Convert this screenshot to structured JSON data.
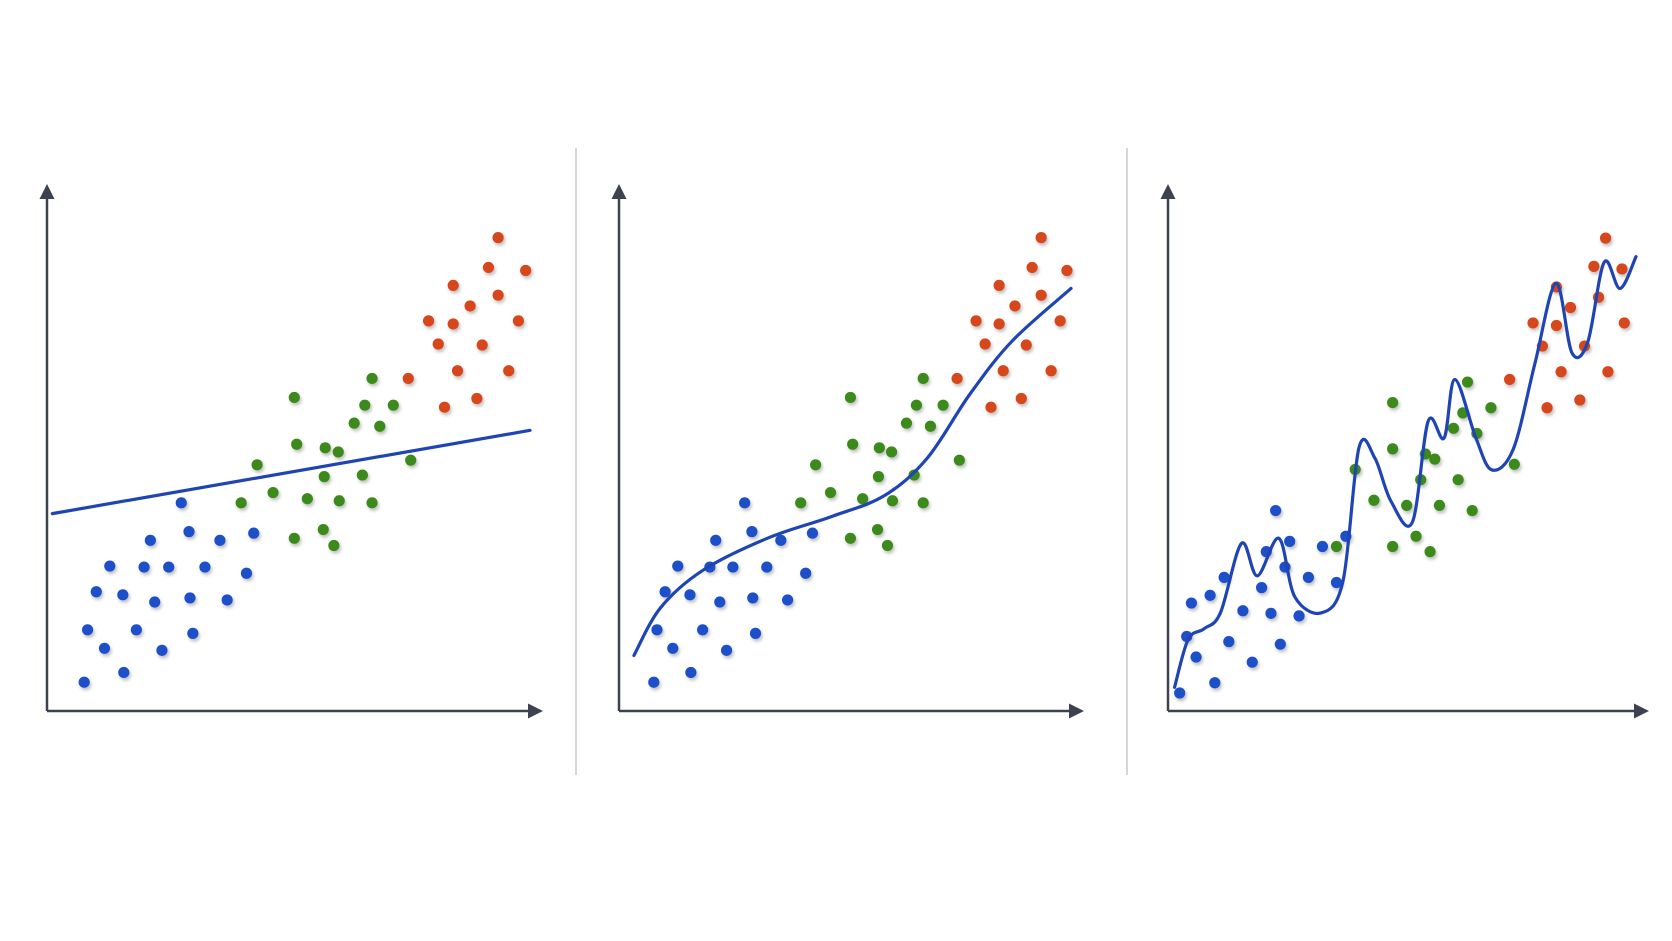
{
  "chart_data": [
    {
      "type": "scatter",
      "xlim": [
        0,
        100
      ],
      "ylim": [
        0,
        100
      ],
      "series": [
        {
          "color": "#1f4fc8",
          "x": [
            7.7,
            15.9,
            11.9,
            8.4,
            18.5,
            23.8,
            30.2,
            10.2,
            15.7,
            22.3,
            29.6,
            37.3,
            13.0,
            20.1,
            25.2,
            32.7,
            41.3,
            21.4,
            29.4,
            35.8,
            42.8,
            27.8
          ],
          "y": [
            5.6,
            7.5,
            12.2,
            15.8,
            15.8,
            11.8,
            15.1,
            23.2,
            22.6,
            21.2,
            22.0,
            21.6,
            28.2,
            28.0,
            28.0,
            28.0,
            26.8,
            33.2,
            34.9,
            33.2,
            34.6,
            40.5
          ]
        },
        {
          "color": "#3d8a1f",
          "x": [
            51.2,
            67.3,
            43.5,
            51.7,
            57.6,
            63.6,
            68.9,
            65.8,
            71.7,
            60.3,
            46.8,
            53.9,
            60.5,
            67.3,
            40.2,
            51.2,
            59.4,
            57.2,
            65.3,
            75.3,
            57.4
          ],
          "y": [
            61.0,
            64.7,
            47.9,
            51.9,
            51.2,
            56.0,
            55.4,
            59.5,
            59.5,
            50.4,
            42.5,
            41.3,
            40.9,
            40.5,
            40.5,
            33.6,
            32.2,
            35.3,
            45.9,
            48.8,
            45.6
          ]
        },
        {
          "color": "#d6461c",
          "x": [
            93.4,
            91.4,
            99.1,
            84.1,
            93.4,
            87.6,
            79.0,
            84.1,
            97.6,
            81.0,
            90.1,
            74.8,
            85.0,
            95.6,
            82.3,
            89.0
          ],
          "y": [
            92.1,
            86.3,
            85.7,
            82.8,
            80.9,
            78.8,
            75.9,
            75.3,
            75.9,
            71.4,
            71.2,
            64.7,
            66.2,
            66.2,
            59.1,
            60.8
          ]
        }
      ],
      "fit": {
        "color": "#1f45b5",
        "x": [
          1.1,
          100
        ],
        "y": [
          38.4,
          54.6
        ]
      }
    },
    {
      "type": "scatter",
      "xlim": [
        0,
        100
      ],
      "ylim": [
        0,
        100
      ],
      "series": [
        {
          "color": "#1f4fc8",
          "x": [
            7.7,
            15.9,
            11.9,
            8.4,
            18.5,
            23.8,
            30.2,
            10.2,
            15.7,
            22.3,
            29.6,
            37.3,
            13.0,
            20.1,
            25.2,
            32.7,
            41.3,
            21.4,
            29.4,
            35.8,
            42.8,
            27.8
          ],
          "y": [
            5.6,
            7.5,
            12.2,
            15.8,
            15.8,
            11.8,
            15.1,
            23.2,
            22.6,
            21.2,
            22.0,
            21.6,
            28.2,
            28.0,
            28.0,
            28.0,
            26.8,
            33.2,
            34.9,
            33.2,
            34.6,
            40.5
          ]
        },
        {
          "color": "#3d8a1f",
          "x": [
            51.2,
            67.3,
            43.5,
            51.7,
            57.6,
            63.6,
            68.9,
            65.8,
            71.7,
            60.3,
            46.8,
            53.9,
            60.5,
            67.3,
            40.2,
            51.2,
            59.4,
            57.2,
            65.3,
            75.3,
            57.4
          ],
          "y": [
            61.0,
            64.7,
            47.9,
            51.9,
            51.2,
            56.0,
            55.4,
            59.5,
            59.5,
            50.4,
            42.5,
            41.3,
            40.9,
            40.5,
            40.5,
            33.6,
            32.2,
            35.3,
            45.9,
            48.8,
            45.6
          ]
        },
        {
          "color": "#d6461c",
          "x": [
            93.4,
            91.4,
            99.1,
            84.1,
            93.4,
            87.6,
            79.0,
            84.1,
            97.6,
            81.0,
            90.1,
            74.8,
            85.0,
            95.6,
            82.3,
            89.0
          ],
          "y": [
            92.1,
            86.3,
            85.7,
            82.8,
            80.9,
            78.8,
            75.9,
            75.3,
            75.9,
            71.4,
            71.2,
            64.7,
            66.2,
            66.2,
            59.1,
            60.8
          ]
        }
      ],
      "fit": {
        "color": "#1f45b5",
        "x": [
          3.3,
          9.2,
          18.6,
          32.8,
          46.9,
          58.7,
          68.2,
          77.6,
          87.0,
          100
        ],
        "y": [
          10.8,
          20.1,
          27.4,
          33.6,
          37.8,
          41.9,
          49.2,
          61.6,
          72.0,
          82.2
        ]
      }
    },
    {
      "type": "scatter",
      "xlim": [
        0,
        100
      ],
      "ylim": [
        0,
        100
      ],
      "series": [
        {
          "color": "#1f4fc8",
          "x": [
            2.5,
            10.0,
            6.0,
            4.0,
            13.0,
            18.0,
            24.0,
            5.0,
            9.0,
            16.0,
            22.0,
            28.0,
            12.0,
            20.0,
            25.0,
            30.0,
            36.0,
            21.0,
            26.0,
            33.0,
            38.0,
            23.0
          ],
          "y": [
            3.5,
            5.5,
            10.5,
            14.5,
            13.5,
            9.5,
            13.0,
            21.0,
            22.5,
            19.5,
            19.0,
            18.5,
            26.0,
            24.0,
            28.0,
            26.0,
            25.0,
            31.0,
            33.0,
            32.0,
            34.0,
            39.0
          ]
        },
        {
          "color": "#3d8a1f",
          "x": [
            48.0,
            64.0,
            40.0,
            48.0,
            55.0,
            61.0,
            66.0,
            63.0,
            69.0,
            57.0,
            44.0,
            51.0,
            58.0,
            65.0,
            36.0,
            48.0,
            56.0,
            53.0,
            62.0,
            74.0,
            54.0
          ],
          "y": [
            60.0,
            64.0,
            47.0,
            51.0,
            50.0,
            55.0,
            54.0,
            58.0,
            59.0,
            49.0,
            41.0,
            40.0,
            40.0,
            39.0,
            32.0,
            32.0,
            31.0,
            34.0,
            45.0,
            48.0,
            45.0
          ]
        },
        {
          "color": "#d6461c",
          "x": [
            93.5,
            91.0,
            97.0,
            83.0,
            92.0,
            86.0,
            78.0,
            83.0,
            97.5,
            80.0,
            89.0,
            73.0,
            84.0,
            94.0,
            81.0,
            88.0
          ],
          "y": [
            92.0,
            86.5,
            86.0,
            82.5,
            80.5,
            78.5,
            75.5,
            75.0,
            75.5,
            71.0,
            71.0,
            64.5,
            66.0,
            66.0,
            59.0,
            60.5
          ]
        }
      ],
      "fit": {
        "color": "#1f45b5",
        "x": [
          1.4,
          4.3,
          7.7,
          11.2,
          15.7,
          19.1,
          23.7,
          27.1,
          32.8,
          37.4,
          40.8,
          44.2,
          47.6,
          52.2,
          55.6,
          59.0,
          61.3,
          65.8,
          69.2,
          73.8,
          78.4,
          82.9,
          86.3,
          89.7,
          93.2,
          96.6,
          100
        ],
        "y": [
          4.6,
          13.9,
          16.0,
          19.1,
          32.6,
          26.3,
          33.6,
          22.2,
          19.1,
          25.3,
          51.2,
          49.2,
          40.9,
          36.7,
          56.4,
          53.1,
          64.5,
          53.1,
          46.9,
          51.0,
          67.6,
          83.2,
          69.7,
          71.8,
          87.3,
          82.2,
          88.4
        ]
      }
    }
  ]
}
